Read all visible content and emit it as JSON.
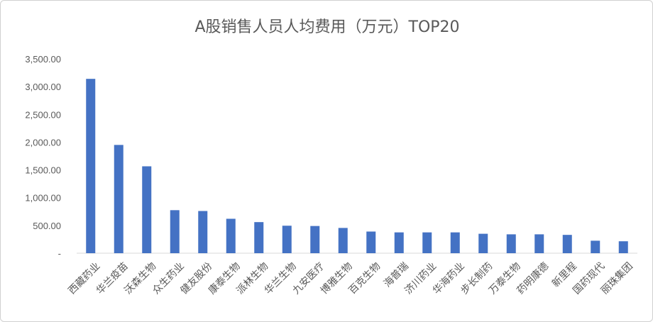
{
  "chart_data": {
    "type": "bar",
    "title": "A股销售人员人均费用（万元）TOP20",
    "categories": [
      "西藏药业",
      "华兰疫苗",
      "沃森生物",
      "众生药业",
      "健友股份",
      "康泰生物",
      "派林生物",
      "华兰生物",
      "九安医疗",
      "博雅生物",
      "百克生物",
      "海普瑞",
      "济川药业",
      "华海药业",
      "步长制药",
      "万泰生物",
      "药明康德",
      "新里程",
      "国药现代",
      "丽珠集团"
    ],
    "values": [
      3140,
      1950,
      1565,
      775,
      760,
      620,
      560,
      495,
      490,
      455,
      390,
      375,
      375,
      375,
      350,
      340,
      340,
      330,
      225,
      215
    ],
    "ylim": [
      0,
      3500
    ],
    "yticks": [
      0,
      500,
      1000,
      1500,
      2000,
      2500,
      3000,
      3500
    ],
    "ytick_labels": [
      "-",
      "500.00",
      "1,000.00",
      "1,500.00",
      "2,000.00",
      "2,500.00",
      "3,000.00",
      "3,500.00"
    ],
    "grid": false,
    "legend": "none",
    "bar_color": "#4472C4"
  }
}
